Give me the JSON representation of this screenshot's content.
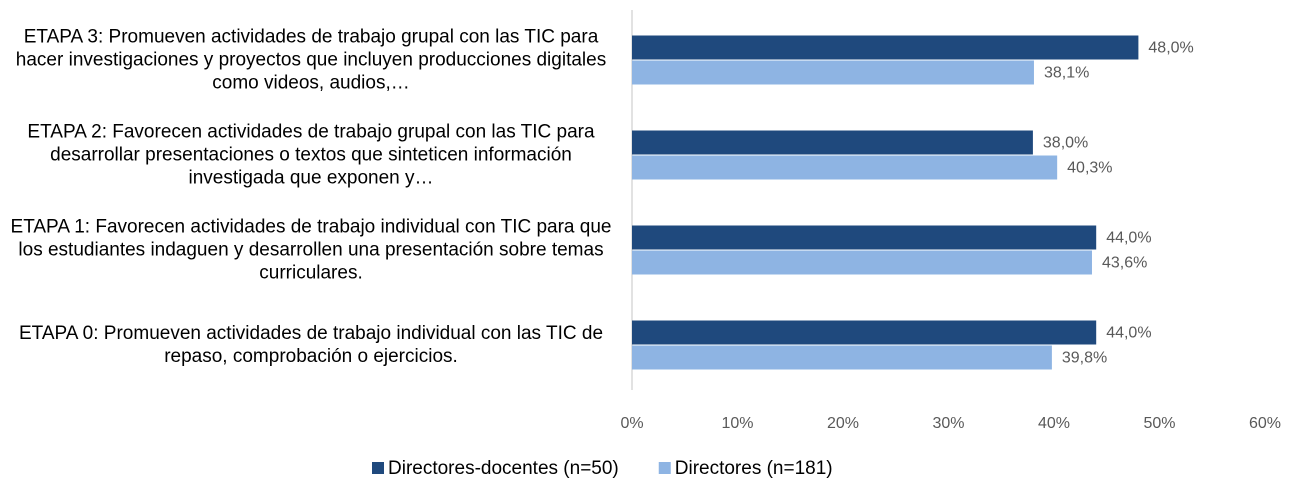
{
  "chart_data": {
    "type": "hbar",
    "categories": [
      "ETAPA 3: Promueven actividades de trabajo grupal con las TIC para hacer investigaciones y proyectos que incluyen producciones digitales como videos, audios,…",
      "ETAPA 2: Favorecen actividades de trabajo grupal con las TIC para desarrollar presentaciones o textos que sinteticen información investigada que exponen y…",
      "ETAPA 1: Favorecen actividades de trabajo individual con TIC para que los estudiantes indaguen y desarrollen una presentación sobre temas curriculares.",
      "ETAPA 0: Promueven actividades de trabajo individual con las TIC de repaso, comprobación o ejercicios."
    ],
    "series": [
      {
        "name": "Directores-docentes (n=50)",
        "color": "#1f497d",
        "values": [
          48.0,
          38.0,
          44.0,
          44.0
        ],
        "value_labels": [
          "48,0%",
          "38,0%",
          "44,0%",
          "44,0%"
        ]
      },
      {
        "name": "Directores (n=181)",
        "color": "#8eb4e3",
        "values": [
          38.1,
          40.3,
          43.6,
          39.8
        ],
        "value_labels": [
          "38,1%",
          "40,3%",
          "43,6%",
          "39,8%"
        ]
      }
    ],
    "xlim": [
      0,
      60
    ],
    "xticks": [
      {
        "value": 0,
        "label": "0%"
      },
      {
        "value": 10,
        "label": "10%"
      },
      {
        "value": 20,
        "label": "20%"
      },
      {
        "value": 30,
        "label": "30%"
      },
      {
        "value": 40,
        "label": "40%"
      },
      {
        "value": 50,
        "label": "50%"
      },
      {
        "value": 60,
        "label": "60%"
      }
    ],
    "legend": "bottom"
  }
}
